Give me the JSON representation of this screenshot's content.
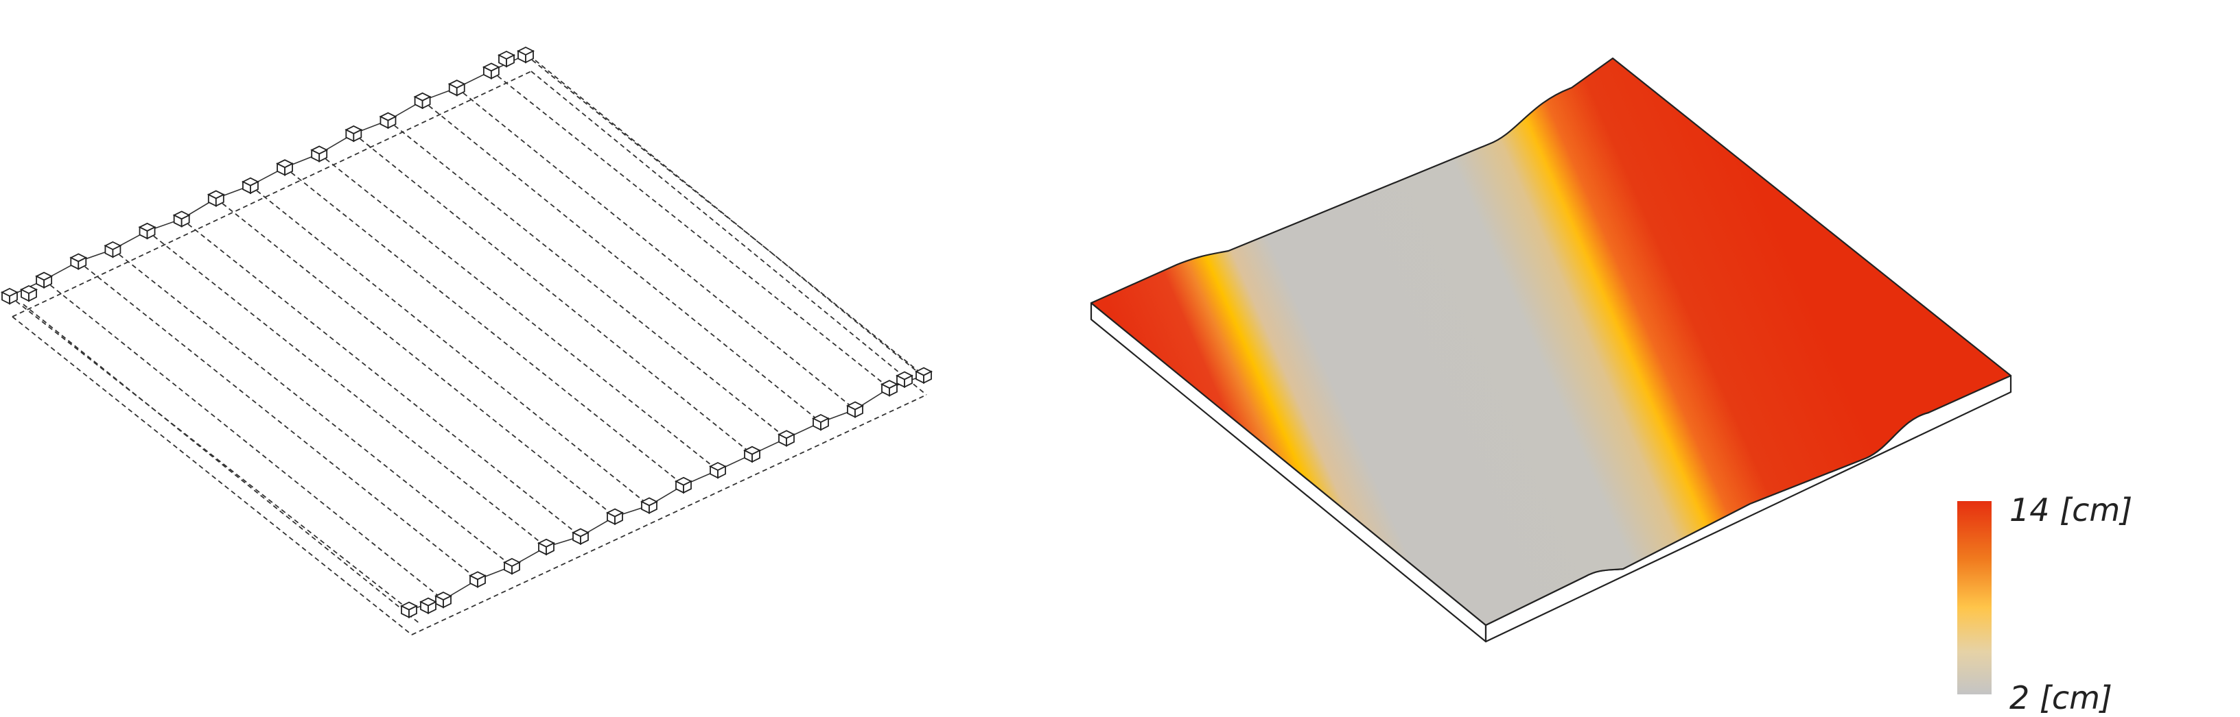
{
  "legend": {
    "max_label": "14 [cm]",
    "min_label": "2 [cm]",
    "max_value": 14,
    "min_value": 2,
    "unit": "cm",
    "colors": {
      "top": "#e63010",
      "upper_mid": "#f07a1e",
      "mid": "#ffc54a",
      "lower_mid": "#f0d08a",
      "bottom": "#c4c4c4"
    }
  },
  "grid": {
    "node_count_per_row": 16,
    "line_count": 16
  },
  "surface": {
    "low_color": "#c4c4c4",
    "high_color": "#e63010",
    "transition_color": "#ffc000",
    "base_color": "#ffffff"
  }
}
